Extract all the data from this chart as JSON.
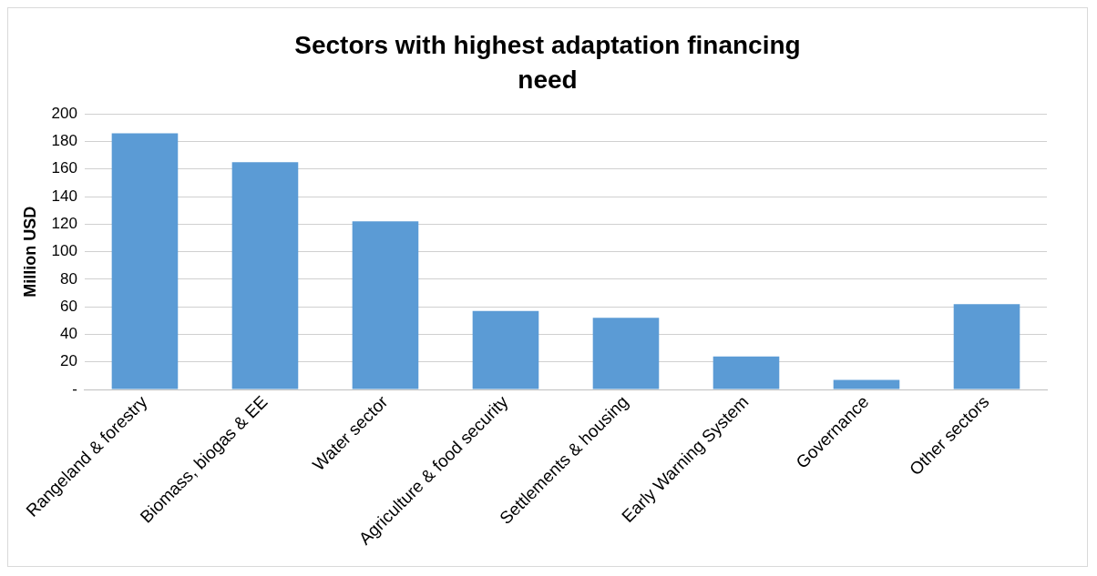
{
  "chart_data": {
    "type": "bar",
    "title": "Sectors with highest adaptation financing need",
    "ylabel": "Million USD",
    "categories": [
      "Rangeland & forestry",
      "Biomass, biogas & EE",
      "Water sector",
      "Agriculture & food security",
      "Settlements & housing",
      "Early Warning System",
      "Governance",
      "Other sectors"
    ],
    "values": [
      186,
      165,
      122,
      57,
      52,
      24,
      7,
      62
    ],
    "color": "#5b9bd5",
    "ylim": [
      0,
      200
    ],
    "yticks": [
      {
        "value": 0,
        "label": "-"
      },
      20,
      40,
      60,
      80,
      100,
      120,
      140,
      160,
      180,
      200
    ],
    "grid": "y",
    "legend": false
  }
}
